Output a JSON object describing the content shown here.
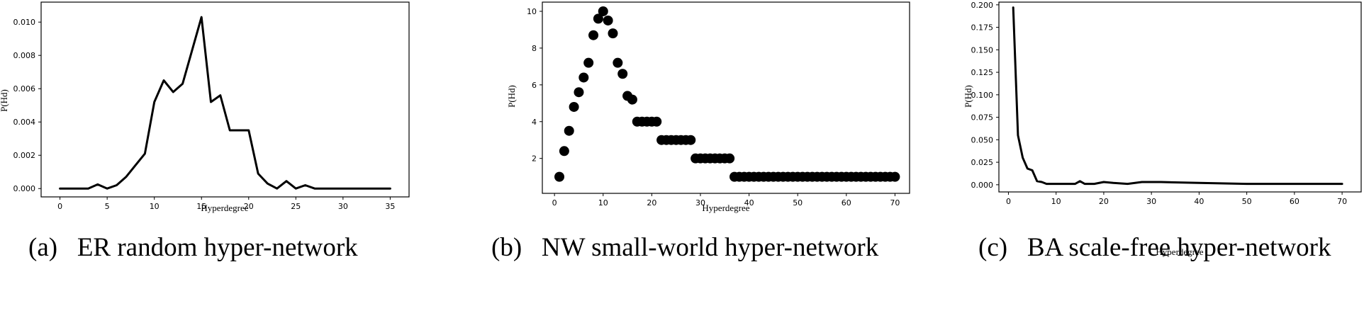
{
  "chart_data": [
    {
      "type": "line",
      "caption": "(a)   ER random hyper-network",
      "xlabel": "Hyperdegree",
      "ylabel": "P(Hd)",
      "xlim": [
        -2,
        37
      ],
      "ylim": [
        -0.0005,
        0.0112
      ],
      "xticks": [
        0,
        5,
        10,
        15,
        20,
        25,
        30,
        35
      ],
      "yticks": [
        0.0,
        0.002,
        0.004,
        0.006,
        0.008,
        0.01
      ],
      "ytick_labels": [
        "0.000",
        "0.002",
        "0.004",
        "0.006",
        "0.008",
        "0.010"
      ],
      "grid": false,
      "series": [
        {
          "x": [
            0,
            1,
            2,
            3,
            4,
            5,
            6,
            7,
            8,
            9,
            10,
            11,
            12,
            13,
            14,
            15,
            16,
            17,
            18,
            19,
            20,
            21,
            22,
            23,
            24,
            25,
            26,
            27,
            28,
            29,
            30,
            31,
            32,
            33,
            34,
            35
          ],
          "y": [
            0.0,
            0.0,
            0.0,
            0.0,
            0.00025,
            0.0,
            0.0002,
            0.0007,
            0.0014,
            0.0021,
            0.0052,
            0.0065,
            0.0058,
            0.0063,
            0.0083,
            0.0103,
            0.0052,
            0.0056,
            0.0035,
            0.0035,
            0.0035,
            0.0009,
            0.0003,
            0.0,
            0.00045,
            0.0,
            0.0002,
            0.0,
            0.0,
            0.0,
            0.0,
            0.0,
            0.0,
            0.0,
            0.0,
            0.0
          ]
        }
      ]
    },
    {
      "type": "scatter",
      "caption": "(b)   NW small-world hyper-network",
      "xlabel": "Hyperdegree",
      "ylabel": "P(Hd)",
      "xlim": [
        -2.5,
        73
      ],
      "ylim": [
        0.1,
        10.5
      ],
      "xticks": [
        0,
        10,
        20,
        30,
        40,
        50,
        60,
        70
      ],
      "yticks": [
        2,
        4,
        6,
        8,
        10
      ],
      "grid": false,
      "series": [
        {
          "x": [
            1,
            2,
            3,
            4,
            5,
            6,
            7,
            8,
            9,
            10,
            11,
            12,
            13,
            14,
            15,
            16,
            17,
            18,
            19,
            20,
            21,
            22,
            23,
            24,
            25,
            26,
            27,
            28,
            29,
            30,
            31,
            32,
            33,
            34,
            35,
            36,
            37,
            38,
            39,
            40,
            41,
            42,
            43,
            44,
            45,
            46,
            47,
            48,
            49,
            50,
            51,
            52,
            53,
            54,
            55,
            56,
            57,
            58,
            59,
            60,
            61,
            62,
            63,
            64,
            65,
            66,
            67,
            68,
            69,
            70
          ],
          "y": [
            1,
            2.4,
            3.5,
            4.8,
            5.6,
            6.4,
            7.2,
            8.7,
            9.6,
            10,
            9.5,
            8.8,
            7.2,
            6.6,
            5.4,
            5.2,
            4,
            4,
            4,
            4,
            4,
            3,
            3,
            3,
            3,
            3,
            3,
            3,
            2,
            2,
            2,
            2,
            2,
            2,
            2,
            2,
            1,
            1,
            1,
            1,
            1,
            1,
            1,
            1,
            1,
            1,
            1,
            1,
            1,
            1,
            1,
            1,
            1,
            1,
            1,
            1,
            1,
            1,
            1,
            1,
            1,
            1,
            1,
            1,
            1,
            1,
            1,
            1,
            1,
            1
          ]
        }
      ]
    },
    {
      "type": "line",
      "caption": "(c)   BA scale-free hyper-network",
      "xlabel": "Hyperdegree",
      "ylabel": "P(Hd)",
      "xlim": [
        -2,
        74
      ],
      "ylim": [
        -0.008,
        0.203
      ],
      "xticks": [
        0,
        10,
        20,
        30,
        40,
        50,
        60,
        70
      ],
      "xtick_labels": [
        "0",
        "10",
        "20",
        "30",
        "40",
        "50",
        "60",
        "70"
      ],
      "yticks": [
        0.0,
        0.025,
        0.05,
        0.075,
        0.1,
        0.125,
        0.15,
        0.175,
        0.2
      ],
      "ytick_labels": [
        "0.000",
        "0.025",
        "0.050",
        "0.075",
        "0.100",
        "0.125",
        "0.150",
        "0.175",
        "0.200"
      ],
      "grid": false,
      "series": [
        {
          "x": [
            1,
            2,
            3,
            4,
            5,
            6,
            7,
            8,
            10,
            12,
            14,
            15,
            16,
            18,
            20,
            22,
            25,
            28,
            32,
            40,
            50,
            60,
            70
          ],
          "y": [
            0.197,
            0.055,
            0.03,
            0.018,
            0.016,
            0.004,
            0.003,
            0.001,
            0.001,
            0.001,
            0.001,
            0.004,
            0.001,
            0.001,
            0.003,
            0.002,
            0.001,
            0.003,
            0.003,
            0.002,
            0.001,
            0.001,
            0.001
          ]
        }
      ]
    }
  ]
}
